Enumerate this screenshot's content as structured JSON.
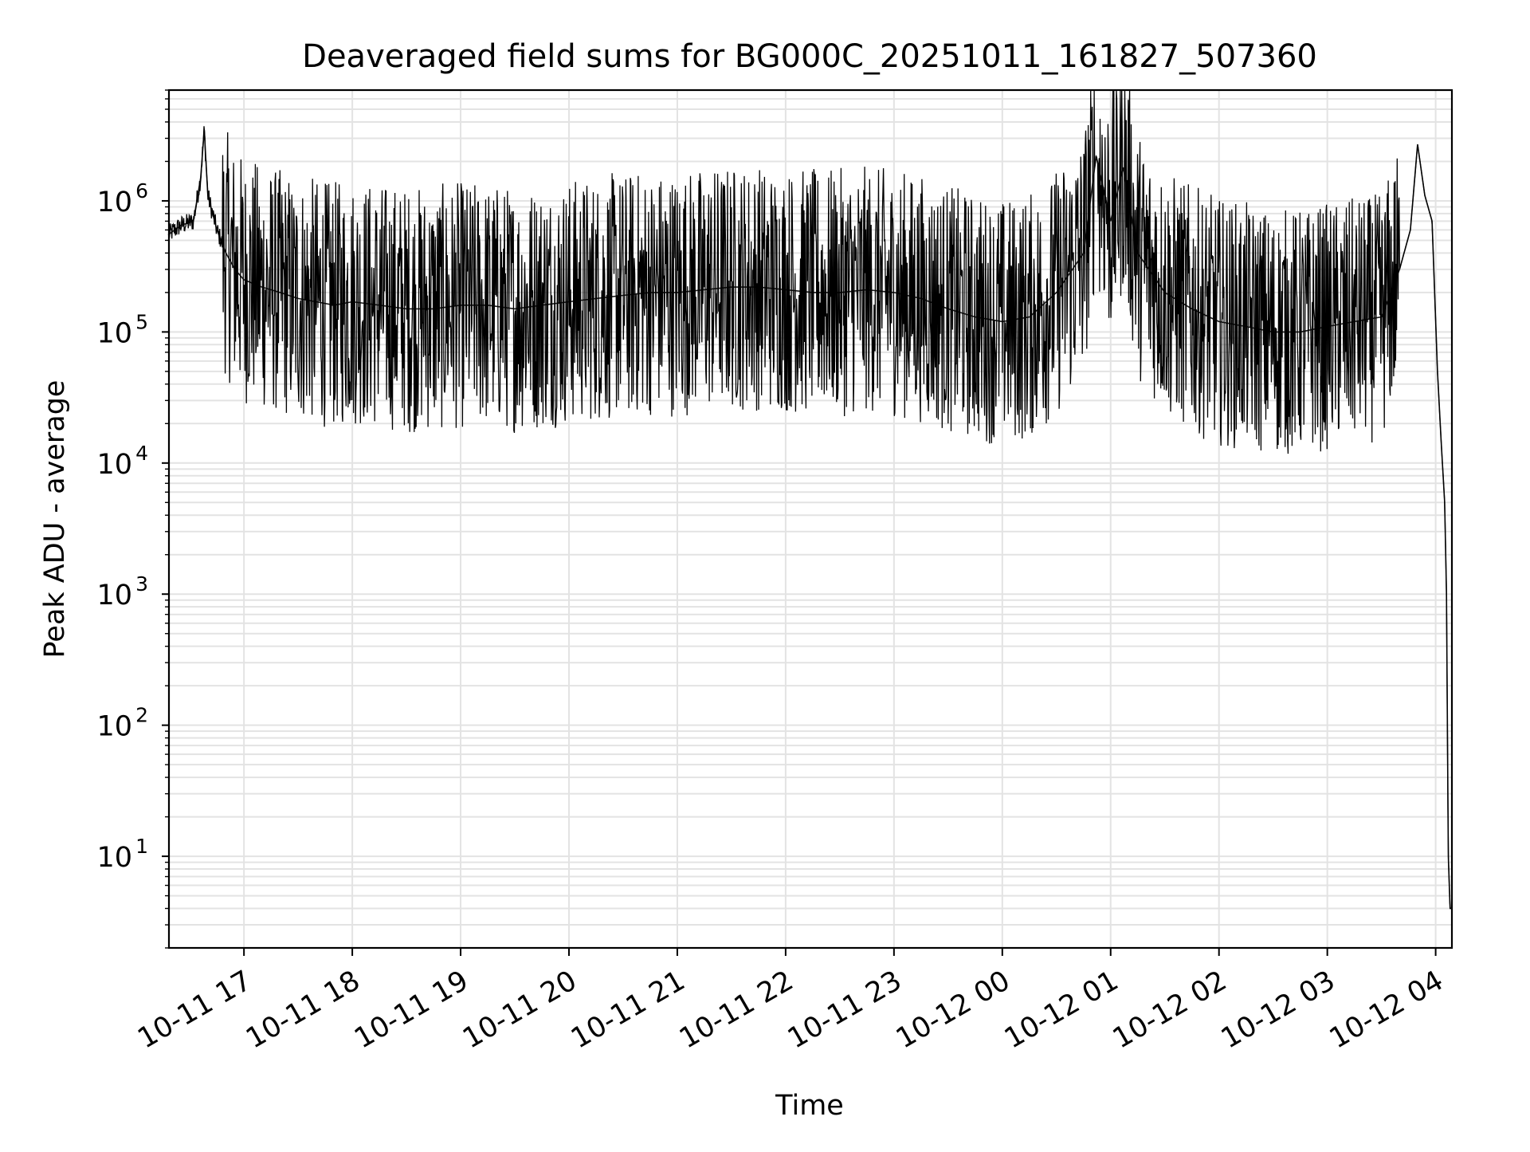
{
  "chart_data": {
    "type": "line",
    "title": "Deaveraged field sums for BG000C_20251011_161827_507360",
    "xlabel": "Time",
    "ylabel": "Peak ADU - average",
    "yscale": "log",
    "ylim": [
      2,
      7000000
    ],
    "xlim": [
      "2025-10-11 16:18:27",
      "2025-10-12 04:09:00"
    ],
    "grid": true,
    "line_color": "#000000",
    "grid_color": "#e3e3e3",
    "x_ticks": [
      {
        "t": "2025-10-11 17:00",
        "label": "10-11 17"
      },
      {
        "t": "2025-10-11 18:00",
        "label": "10-11 18"
      },
      {
        "t": "2025-10-11 19:00",
        "label": "10-11 19"
      },
      {
        "t": "2025-10-11 20:00",
        "label": "10-11 20"
      },
      {
        "t": "2025-10-11 21:00",
        "label": "10-11 21"
      },
      {
        "t": "2025-10-11 22:00",
        "label": "10-11 22"
      },
      {
        "t": "2025-10-11 23:00",
        "label": "10-11 23"
      },
      {
        "t": "2025-10-12 00:00",
        "label": "10-12 00"
      },
      {
        "t": "2025-10-12 01:00",
        "label": "10-12 01"
      },
      {
        "t": "2025-10-12 02:00",
        "label": "10-12 02"
      },
      {
        "t": "2025-10-12 03:00",
        "label": "10-12 03"
      },
      {
        "t": "2025-10-12 04:00",
        "label": "10-12 04"
      }
    ],
    "y_ticks": [
      {
        "value": 10,
        "base": "10",
        "exp": "1"
      },
      {
        "value": 100,
        "base": "10",
        "exp": "2"
      },
      {
        "value": 1000,
        "base": "10",
        "exp": "3"
      },
      {
        "value": 10000,
        "base": "10",
        "exp": "4"
      },
      {
        "value": 100000,
        "base": "10",
        "exp": "5"
      },
      {
        "value": 1000000,
        "base": "10",
        "exp": "6"
      }
    ],
    "series": [
      {
        "x": [
          "2025-10-11 16:18",
          "2025-10-11 16:25",
          "2025-10-11 16:32",
          "2025-10-11 16:36",
          "2025-10-11 16:38",
          "2025-10-11 16:40",
          "2025-10-11 16:45",
          "2025-10-11 16:50",
          "2025-10-11 16:55",
          "2025-10-11 17:00",
          "2025-10-11 17:10",
          "2025-10-11 17:20",
          "2025-10-11 17:30",
          "2025-10-11 17:40",
          "2025-10-11 17:50",
          "2025-10-11 18:00",
          "2025-10-11 18:15",
          "2025-10-11 18:30",
          "2025-10-11 18:45",
          "2025-10-11 19:00",
          "2025-10-11 19:15",
          "2025-10-11 19:30",
          "2025-10-11 19:45",
          "2025-10-11 20:00",
          "2025-10-11 20:15",
          "2025-10-11 20:30",
          "2025-10-11 20:45",
          "2025-10-11 21:00",
          "2025-10-11 21:15",
          "2025-10-11 21:30",
          "2025-10-11 21:45",
          "2025-10-11 22:00",
          "2025-10-11 22:15",
          "2025-10-11 22:30",
          "2025-10-11 22:45",
          "2025-10-11 23:00",
          "2025-10-11 23:15",
          "2025-10-11 23:30",
          "2025-10-11 23:45",
          "2025-10-12 00:00",
          "2025-10-12 00:15",
          "2025-10-12 00:30",
          "2025-10-12 00:45",
          "2025-10-12 00:52",
          "2025-10-12 01:00",
          "2025-10-12 01:07",
          "2025-10-12 01:15",
          "2025-10-12 01:30",
          "2025-10-12 01:45",
          "2025-10-12 02:00",
          "2025-10-12 02:15",
          "2025-10-12 02:30",
          "2025-10-12 02:45",
          "2025-10-12 03:00",
          "2025-10-12 03:15",
          "2025-10-12 03:30",
          "2025-10-12 03:40",
          "2025-10-12 03:46",
          "2025-10-12 03:50",
          "2025-10-12 03:54",
          "2025-10-12 03:58",
          "2025-10-12 04:01",
          "2025-10-12 04:03",
          "2025-10-12 04:05",
          "2025-10-12 04:06",
          "2025-10-12 04:07",
          "2025-10-12 04:08",
          "2025-10-12 04:09"
        ],
        "y": [
          550000,
          650000,
          700000,
          1500000,
          3500000,
          1100000,
          600000,
          400000,
          300000,
          250000,
          220000,
          200000,
          180000,
          170000,
          160000,
          170000,
          160000,
          150000,
          150000,
          160000,
          160000,
          150000,
          160000,
          170000,
          180000,
          190000,
          200000,
          200000,
          210000,
          220000,
          220000,
          210000,
          200000,
          200000,
          210000,
          200000,
          180000,
          150000,
          130000,
          120000,
          130000,
          200000,
          400000,
          2200000,
          700000,
          1800000,
          400000,
          200000,
          150000,
          120000,
          110000,
          100000,
          100000,
          110000,
          120000,
          130000,
          300000,
          600000,
          2700000,
          1100000,
          700000,
          50000,
          15000,
          5000,
          1000,
          10,
          4,
          4
        ],
        "noise": {
          "upper_typical": 1500000,
          "lower_typical": 60000
        }
      }
    ]
  }
}
